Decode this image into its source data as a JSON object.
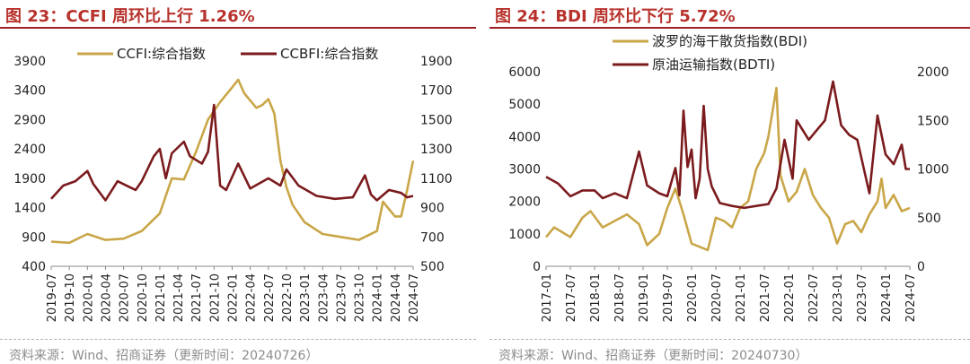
{
  "charts": [
    {
      "id": "c1",
      "title": "图 23：CCFI 周环比上行 1.26%",
      "source": "资料来源：Wind、招商证券（更新时间：20240726）",
      "y_left_ticks": [
        "3900",
        "3400",
        "2900",
        "2400",
        "1900",
        "1400",
        "900",
        "400"
      ],
      "y_right_ticks": [
        "1900",
        "1700",
        "1500",
        "1300",
        "1100",
        "900",
        "700",
        "500"
      ],
      "x_ticks": [
        "2019-07",
        "2019-10",
        "2020-01",
        "2020-04",
        "2020-07",
        "2020-10",
        "2021-01",
        "2021-04",
        "2021-07",
        "2021-10",
        "2022-01",
        "2022-04",
        "2022-07",
        "2022-10",
        "2023-01",
        "2023-04",
        "2023-07",
        "2023-10",
        "2024-01",
        "2024-04",
        "2024-07"
      ],
      "colors": {
        "left_series": "#c9a648",
        "right_series": "#7b1b1e"
      }
    },
    {
      "id": "c2",
      "title": "图 24：BDI 周环比下行 5.72%",
      "source": "资料来源：Wind、招商证券（更新时间：20240730）",
      "y_left_ticks": [
        "6000",
        "5000",
        "4000",
        "3000",
        "2000",
        "1000",
        "0"
      ],
      "y_right_ticks": [
        "2000",
        "1500",
        "1000",
        "500",
        "0"
      ],
      "x_ticks": [
        "2017-01",
        "2017-07",
        "2018-01",
        "2018-07",
        "2019-01",
        "2019-07",
        "2020-01",
        "2020-07",
        "2021-01",
        "2021-07",
        "2022-01",
        "2022-07",
        "2023-01",
        "2023-07",
        "2024-01",
        "2024-07"
      ],
      "colors": {
        "left_series": "#c9a648",
        "right_series": "#7b1b1e"
      }
    }
  ],
  "chart_data": [
    {
      "type": "line",
      "title": "图 23：CCFI 周环比上行 1.26%",
      "ylim_left": [
        400,
        3900
      ],
      "ylim_right": [
        500,
        1900
      ],
      "x_range": [
        "2019-07",
        "2024-07"
      ],
      "legend_position": "top",
      "grid": false,
      "series": [
        {
          "name": "CCFI:综合指数",
          "axis": "left",
          "x": [
            "2019-07",
            "2019-10",
            "2020-01",
            "2020-04",
            "2020-07",
            "2020-10",
            "2021-01",
            "2021-03",
            "2021-05",
            "2021-07",
            "2021-09",
            "2021-11",
            "2022-01",
            "2022-02",
            "2022-03",
            "2022-05",
            "2022-06",
            "2022-07",
            "2022-08",
            "2022-09",
            "2022-10",
            "2022-11",
            "2023-01",
            "2023-04",
            "2023-07",
            "2023-10",
            "2024-01",
            "2024-02",
            "2024-04",
            "2024-05",
            "2024-06",
            "2024-07"
          ],
          "y": [
            820,
            800,
            950,
            850,
            870,
            1000,
            1300,
            1900,
            1880,
            2350,
            2900,
            3200,
            3450,
            3580,
            3350,
            3100,
            3150,
            3250,
            3000,
            2200,
            1750,
            1450,
            1150,
            950,
            900,
            850,
            1000,
            1500,
            1250,
            1250,
            1700,
            2200
          ]
        },
        {
          "name": "CCBFI:综合指数",
          "axis": "right",
          "x": [
            "2019-07",
            "2019-09",
            "2019-11",
            "2020-01",
            "2020-02",
            "2020-04",
            "2020-06",
            "2020-07",
            "2020-09",
            "2020-10",
            "2020-12",
            "2021-01",
            "2021-02",
            "2021-03",
            "2021-05",
            "2021-06",
            "2021-08",
            "2021-09",
            "2021-10",
            "2021-11",
            "2021-12",
            "2022-02",
            "2022-04",
            "2022-07",
            "2022-09",
            "2022-10",
            "2022-12",
            "2023-03",
            "2023-06",
            "2023-09",
            "2023-11",
            "2023-12",
            "2024-01",
            "2024-03",
            "2024-05",
            "2024-06",
            "2024-07"
          ],
          "y": [
            960,
            1050,
            1080,
            1150,
            1060,
            950,
            1080,
            1060,
            1020,
            1080,
            1250,
            1300,
            1100,
            1270,
            1350,
            1250,
            1200,
            1280,
            1600,
            1050,
            1020,
            1200,
            1030,
            1100,
            1050,
            1160,
            1050,
            980,
            960,
            970,
            1120,
            990,
            950,
            1020,
            1000,
            970,
            980
          ]
        }
      ]
    },
    {
      "type": "line",
      "title": "图 24：BDI 周环比下行 5.72%",
      "ylim_left": [
        0,
        6000
      ],
      "ylim_right": [
        0,
        2000
      ],
      "x_range": [
        "2017-01",
        "2024-07"
      ],
      "legend_position": "top",
      "grid": false,
      "series": [
        {
          "name": "波罗的海干散货指数(BDI)",
          "axis": "left",
          "x": [
            "2017-01",
            "2017-03",
            "2017-07",
            "2017-10",
            "2017-12",
            "2018-03",
            "2018-06",
            "2018-09",
            "2018-12",
            "2019-02",
            "2019-05",
            "2019-07",
            "2019-09",
            "2019-11",
            "2020-01",
            "2020-03",
            "2020-05",
            "2020-07",
            "2020-09",
            "2020-11",
            "2021-01",
            "2021-03",
            "2021-05",
            "2021-07",
            "2021-08",
            "2021-10",
            "2021-11",
            "2022-01",
            "2022-03",
            "2022-05",
            "2022-07",
            "2022-09",
            "2022-11",
            "2023-01",
            "2023-03",
            "2023-05",
            "2023-07",
            "2023-09",
            "2023-11",
            "2023-12",
            "2024-01",
            "2024-03",
            "2024-05",
            "2024-07"
          ],
          "y": [
            900,
            1200,
            900,
            1500,
            1700,
            1200,
            1400,
            1600,
            1300,
            650,
            1000,
            1800,
            2400,
            1600,
            700,
            600,
            500,
            1500,
            1400,
            1200,
            1800,
            2000,
            3000,
            3500,
            4000,
            5500,
            2800,
            2000,
            2300,
            3000,
            2200,
            1800,
            1500,
            700,
            1300,
            1400,
            1050,
            1600,
            2000,
            2700,
            1800,
            2200,
            1700,
            1800
          ]
        },
        {
          "name": "原油运输指数(BDTI)",
          "axis": "right",
          "x": [
            "2017-01",
            "2017-04",
            "2017-07",
            "2017-10",
            "2018-01",
            "2018-03",
            "2018-06",
            "2018-09",
            "2018-12",
            "2019-02",
            "2019-05",
            "2019-07",
            "2019-09",
            "2019-10",
            "2019-11",
            "2019-12",
            "2020-01",
            "2020-02",
            "2020-03",
            "2020-04",
            "2020-05",
            "2020-06",
            "2020-08",
            "2020-11",
            "2021-02",
            "2021-05",
            "2021-08",
            "2021-10",
            "2021-12",
            "2022-02",
            "2022-03",
            "2022-06",
            "2022-08",
            "2022-10",
            "2022-12",
            "2023-02",
            "2023-04",
            "2023-06",
            "2023-09",
            "2023-11",
            "2024-01",
            "2024-03",
            "2024-05",
            "2024-06",
            "2024-07"
          ],
          "y": [
            920,
            850,
            720,
            780,
            780,
            700,
            750,
            700,
            1180,
            830,
            750,
            720,
            1010,
            730,
            1600,
            1020,
            1200,
            700,
            900,
            1650,
            1000,
            820,
            650,
            620,
            600,
            620,
            640,
            800,
            1300,
            900,
            1500,
            1300,
            1400,
            1500,
            1900,
            1450,
            1350,
            1300,
            750,
            1550,
            1150,
            1050,
            1250,
            1000,
            1000
          ]
        }
      ]
    }
  ]
}
